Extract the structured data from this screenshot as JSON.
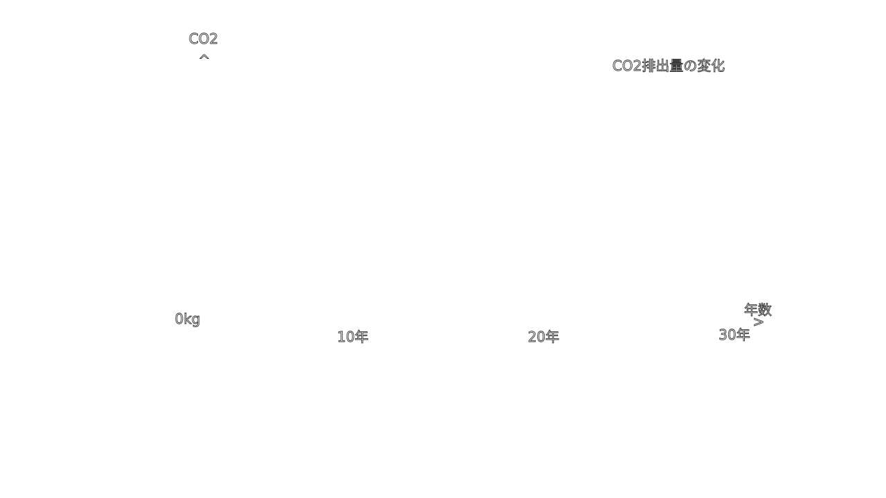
{
  "chart_data": {
    "type": "line",
    "title": "CO2排出量の変化",
    "ylabel": "CO2",
    "xlabel": "年数",
    "y_axis_arrow": "^",
    "x_axis_arrow": ">",
    "origin_label": "0kg",
    "x_ticks": [
      {
        "value": 10,
        "label": "10年"
      },
      {
        "value": 20,
        "label": "20年"
      },
      {
        "value": 30,
        "label": "30年"
      }
    ],
    "xlim": [
      0,
      30
    ],
    "grid": false,
    "series": []
  }
}
